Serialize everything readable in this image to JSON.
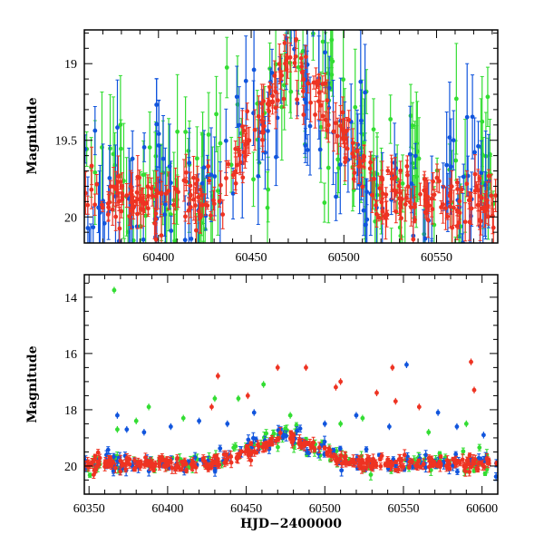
{
  "chart_data": [
    {
      "type": "scatter",
      "ylabel": "Magnitude",
      "xlabel": "",
      "xlim": [
        60360,
        60583
      ],
      "ylim": [
        20.17,
        18.78
      ],
      "y_inverted": true,
      "x_ticks": [
        60400,
        60450,
        60500,
        60550
      ],
      "y_ticks": [
        19,
        19.5,
        20
      ],
      "y_tick_labels": [
        "19",
        "19.5",
        "20"
      ],
      "error_bars": true,
      "series": [
        {
          "color": "#33dd33",
          "peak_x": 60473,
          "peak_mag": 18.92,
          "base_mag": 19.85,
          "scatter": 0.28
        },
        {
          "color": "#1155dd",
          "peak_x": 60473,
          "peak_mag": 18.92,
          "base_mag": 19.85,
          "scatter": 0.24
        },
        {
          "color": "#ee3322",
          "peak_x": 60473,
          "peak_mag": 18.95,
          "base_mag": 19.88,
          "scatter": 0.1
        }
      ]
    },
    {
      "type": "scatter",
      "ylabel": "Magnitude",
      "xlabel": "HJD−2400000",
      "xlim": [
        60347,
        60610
      ],
      "ylim": [
        21.0,
        13.2
      ],
      "y_inverted": true,
      "x_ticks": [
        60350,
        60400,
        60450,
        60500,
        60550,
        60600
      ],
      "y_ticks": [
        14,
        16,
        18,
        20
      ],
      "y_tick_labels": [
        "14",
        "16",
        "18",
        "20"
      ],
      "error_bars": true,
      "series": [
        {
          "color": "#33dd33",
          "peak_x": 60473,
          "peak_mag": 18.92,
          "base_mag": 19.9,
          "outliers": [
            [
              60366,
              13.75
            ],
            [
              60368,
              18.7
            ],
            [
              60380,
              18.4
            ],
            [
              60388,
              17.9
            ],
            [
              60410,
              18.3
            ],
            [
              60430,
              17.6
            ],
            [
              60445,
              17.6
            ],
            [
              60461,
              17.1
            ],
            [
              60478,
              18.2
            ],
            [
              60510,
              18.5
            ],
            [
              60524,
              18.3
            ],
            [
              60566,
              18.8
            ],
            [
              60590,
              18.5
            ]
          ]
        },
        {
          "color": "#1155dd",
          "peak_x": 60473,
          "peak_mag": 18.92,
          "base_mag": 19.9,
          "outliers": [
            [
              60368,
              18.2
            ],
            [
              60374,
              18.7
            ],
            [
              60385,
              18.8
            ],
            [
              60402,
              18.6
            ],
            [
              60420,
              18.4
            ],
            [
              60438,
              18.5
            ],
            [
              60455,
              18.1
            ],
            [
              60500,
              18.5
            ],
            [
              60520,
              18.2
            ],
            [
              60541,
              18.6
            ],
            [
              60552,
              16.4
            ],
            [
              60572,
              18.1
            ],
            [
              60584,
              18.6
            ],
            [
              60601,
              18.9
            ]
          ]
        },
        {
          "color": "#ee3322",
          "peak_x": 60473,
          "peak_mag": 18.95,
          "base_mag": 19.92,
          "outliers": [
            [
              60428,
              17.9
            ],
            [
              60432,
              16.8
            ],
            [
              60451,
              17.5
            ],
            [
              60470,
              16.5
            ],
            [
              60488,
              16.5
            ],
            [
              60507,
              17.2
            ],
            [
              60510,
              17.0
            ],
            [
              60533,
              17.4
            ],
            [
              60543,
              16.5
            ],
            [
              60545,
              17.7
            ],
            [
              60560,
              17.9
            ],
            [
              60593,
              16.3
            ],
            [
              60595,
              17.3
            ]
          ]
        }
      ]
    }
  ]
}
